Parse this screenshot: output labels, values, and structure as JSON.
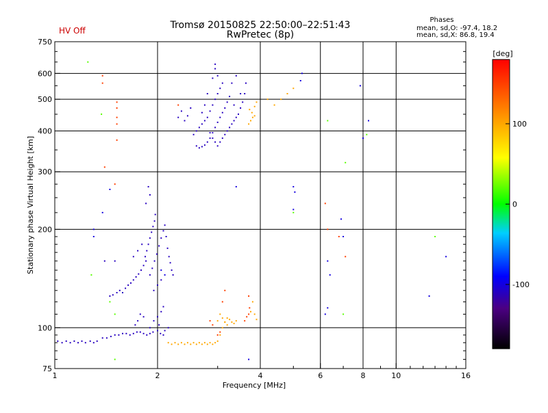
{
  "chart_data": {
    "type": "scatter",
    "title": "Tromsø 20150825 22:50:00–22:51:43",
    "subtitle": "RwPretec (8p)",
    "status_text": "HV Off",
    "phase_info": {
      "heading": "Phases",
      "line1": "mean, sd,O: -97.4, 18.2",
      "line2": "mean, sd,X:  86.8, 19.4"
    },
    "xlabel": "Frequency [MHz]",
    "ylabel": "Stationary phase Virtual Height [km]",
    "x_scale": "log",
    "y_scale": "log",
    "xlim": [
      1,
      16
    ],
    "ylim": [
      75,
      750
    ],
    "x_ticks": [
      1,
      2,
      4,
      6,
      8,
      10,
      16
    ],
    "y_ticks": [
      75,
      100,
      200,
      300,
      400,
      500,
      600,
      750
    ],
    "x_grid": [
      2,
      4,
      6,
      8,
      10
    ],
    "y_grid": [
      100,
      200,
      300,
      400,
      500,
      600
    ],
    "colorbar": {
      "label": "[deg]",
      "range": [
        -180,
        180
      ],
      "ticks": [
        100,
        0,
        -100
      ]
    },
    "series": [
      {
        "name": "",
        "phase_deg": -110,
        "points": [
          [
            1.02,
            91
          ],
          [
            1.05,
            90
          ],
          [
            1.08,
            91
          ],
          [
            1.11,
            90
          ],
          [
            1.14,
            91
          ],
          [
            1.17,
            90
          ],
          [
            1.2,
            91
          ],
          [
            1.23,
            90
          ],
          [
            1.27,
            91
          ],
          [
            1.3,
            90
          ],
          [
            1.33,
            91
          ],
          [
            1.38,
            93
          ],
          [
            1.42,
            93
          ],
          [
            1.46,
            94
          ],
          [
            1.5,
            95
          ],
          [
            1.54,
            95
          ],
          [
            1.58,
            96
          ],
          [
            1.62,
            96
          ],
          [
            1.66,
            95
          ],
          [
            1.7,
            96
          ],
          [
            1.74,
            97
          ],
          [
            1.78,
            97
          ],
          [
            1.82,
            96
          ],
          [
            1.86,
            95
          ],
          [
            1.9,
            96
          ],
          [
            1.94,
            97
          ],
          [
            2.0,
            98
          ],
          [
            2.04,
            96
          ],
          [
            2.08,
            95
          ],
          [
            1.45,
            125
          ],
          [
            1.48,
            126
          ],
          [
            1.52,
            128
          ],
          [
            1.55,
            130
          ],
          [
            1.58,
            128
          ],
          [
            1.61,
            132
          ],
          [
            1.64,
            135
          ],
          [
            1.67,
            137
          ],
          [
            1.7,
            140
          ],
          [
            1.73,
            143
          ],
          [
            1.76,
            146
          ],
          [
            1.79,
            150
          ],
          [
            1.82,
            155
          ],
          [
            1.85,
            160
          ],
          [
            1.84,
            165
          ],
          [
            1.86,
            172
          ],
          [
            1.88,
            180
          ],
          [
            1.9,
            188
          ],
          [
            1.92,
            196
          ],
          [
            1.94,
            204
          ],
          [
            1.96,
            212
          ],
          [
            1.97,
            222
          ],
          [
            1.85,
            240
          ],
          [
            1.9,
            255
          ],
          [
            1.88,
            270
          ],
          [
            1.9,
            145
          ],
          [
            1.93,
            152
          ],
          [
            1.96,
            160
          ],
          [
            1.99,
            168
          ],
          [
            2.02,
            178
          ],
          [
            2.05,
            188
          ],
          [
            2.08,
            198
          ],
          [
            2.1,
            206
          ],
          [
            2.12,
            190
          ],
          [
            2.14,
            175
          ],
          [
            2.16,
            165
          ],
          [
            2.18,
            158
          ],
          [
            2.2,
            150
          ],
          [
            2.22,
            145
          ],
          [
            2.05,
            140
          ],
          [
            2.0,
            135
          ],
          [
            1.95,
            130
          ],
          [
            1.7,
            165
          ],
          [
            1.75,
            172
          ],
          [
            1.8,
            180
          ],
          [
            1.5,
            160
          ],
          [
            1.4,
            160
          ],
          [
            1.95,
            105
          ],
          [
            2.0,
            108
          ],
          [
            2.05,
            112
          ],
          [
            2.08,
            116
          ],
          [
            1.78,
            110
          ],
          [
            1.82,
            108
          ],
          [
            1.75,
            105
          ],
          [
            1.72,
            102
          ],
          [
            1.9,
            100
          ],
          [
            2.02,
            102
          ],
          [
            2.1,
            98
          ],
          [
            2.15,
            100
          ],
          [
            2.85,
            395
          ],
          [
            2.9,
            380
          ],
          [
            2.95,
            370
          ],
          [
            3.0,
            360
          ],
          [
            3.05,
            370
          ],
          [
            3.1,
            380
          ],
          [
            3.15,
            390
          ],
          [
            3.2,
            400
          ],
          [
            3.25,
            410
          ],
          [
            3.3,
            420
          ],
          [
            3.35,
            430
          ],
          [
            3.4,
            440
          ],
          [
            3.45,
            450
          ],
          [
            3.5,
            470
          ],
          [
            3.55,
            490
          ],
          [
            3.6,
            520
          ],
          [
            3.63,
            560
          ],
          [
            2.6,
            360
          ],
          [
            2.65,
            355
          ],
          [
            2.7,
            358
          ],
          [
            2.75,
            362
          ],
          [
            2.8,
            370
          ],
          [
            2.85,
            380
          ],
          [
            2.9,
            395
          ],
          [
            2.95,
            410
          ],
          [
            3.0,
            425
          ],
          [
            3.05,
            440
          ],
          [
            3.1,
            455
          ],
          [
            3.15,
            470
          ],
          [
            3.2,
            490
          ],
          [
            3.25,
            510
          ],
          [
            2.55,
            390
          ],
          [
            2.6,
            400
          ],
          [
            2.65,
            410
          ],
          [
            2.7,
            420
          ],
          [
            2.75,
            430
          ],
          [
            2.8,
            440
          ],
          [
            2.85,
            460
          ],
          [
            2.9,
            480
          ],
          [
            2.95,
            500
          ],
          [
            3.0,
            520
          ],
          [
            3.05,
            540
          ],
          [
            3.1,
            560
          ],
          [
            3.0,
            590
          ],
          [
            2.95,
            640
          ],
          [
            2.95,
            620
          ],
          [
            2.9,
            580
          ],
          [
            2.8,
            520
          ],
          [
            2.75,
            480
          ],
          [
            2.7,
            455
          ],
          [
            2.45,
            445
          ],
          [
            2.4,
            430
          ],
          [
            2.3,
            440
          ],
          [
            2.35,
            460
          ],
          [
            2.5,
            470
          ],
          [
            3.4,
            590
          ],
          [
            3.3,
            560
          ],
          [
            3.5,
            520
          ],
          [
            3.35,
            480
          ]
        ]
      },
      {
        "name": "",
        "phase_deg": 100,
        "points": [
          [
            2.15,
            90
          ],
          [
            2.2,
            89
          ],
          [
            2.25,
            90
          ],
          [
            2.3,
            89
          ],
          [
            2.35,
            90
          ],
          [
            2.4,
            89
          ],
          [
            2.45,
            90
          ],
          [
            2.5,
            89
          ],
          [
            2.55,
            90
          ],
          [
            2.6,
            89
          ],
          [
            2.65,
            90
          ],
          [
            2.7,
            89
          ],
          [
            2.75,
            90
          ],
          [
            2.8,
            89
          ],
          [
            2.85,
            90
          ],
          [
            2.9,
            89
          ],
          [
            2.95,
            90
          ],
          [
            3.0,
            91
          ],
          [
            3.05,
            95
          ],
          [
            3.1,
            100
          ],
          [
            3.15,
            104
          ],
          [
            3.2,
            107
          ],
          [
            3.25,
            106
          ],
          [
            3.3,
            104
          ],
          [
            3.35,
            103
          ],
          [
            3.4,
            105
          ],
          [
            3.7,
            420
          ],
          [
            3.75,
            430
          ],
          [
            3.8,
            440
          ],
          [
            3.85,
            445
          ],
          [
            3.78,
            455
          ],
          [
            3.72,
            465
          ],
          [
            3.85,
            475
          ],
          [
            3.9,
            490
          ],
          [
            4.2,
            500
          ],
          [
            4.4,
            480
          ],
          [
            4.6,
            500
          ],
          [
            4.8,
            520
          ],
          [
            5.0,
            540
          ],
          [
            3.0,
            105
          ],
          [
            3.05,
            110
          ],
          [
            3.1,
            107
          ],
          [
            3.15,
            104
          ],
          [
            3.2,
            102
          ],
          [
            3.8,
            120
          ],
          [
            3.75,
            112
          ],
          [
            3.85,
            110
          ],
          [
            3.9,
            106
          ]
        ]
      },
      {
        "name": "",
        "phase_deg": 150,
        "points": [
          [
            3.6,
            105
          ],
          [
            3.65,
            108
          ],
          [
            3.7,
            110
          ],
          [
            3.72,
            115
          ],
          [
            3.7,
            125
          ],
          [
            3.0,
            95
          ],
          [
            3.05,
            97
          ],
          [
            2.9,
            102
          ],
          [
            2.85,
            105
          ],
          [
            3.1,
            120
          ],
          [
            3.15,
            130
          ],
          [
            1.38,
            590
          ],
          [
            1.38,
            560
          ],
          [
            1.52,
            490
          ],
          [
            1.52,
            470
          ],
          [
            1.52,
            440
          ],
          [
            1.52,
            420
          ],
          [
            1.52,
            375
          ],
          [
            1.4,
            310
          ],
          [
            1.5,
            275
          ],
          [
            2.3,
            480
          ],
          [
            6.2,
            240
          ],
          [
            6.3,
            200
          ],
          [
            6.8,
            190
          ],
          [
            7.1,
            165
          ]
        ]
      },
      {
        "name": "",
        "phase_deg": -100,
        "points": [
          [
            1.3,
            200
          ],
          [
            1.3,
            190
          ],
          [
            1.38,
            225
          ],
          [
            1.45,
            265
          ],
          [
            2.05,
            150
          ],
          [
            2.1,
            145
          ],
          [
            5.3,
            600
          ],
          [
            5.25,
            570
          ],
          [
            5.0,
            270
          ],
          [
            5.05,
            260
          ],
          [
            5.0,
            230
          ],
          [
            6.9,
            215
          ],
          [
            7.0,
            190
          ],
          [
            6.3,
            160
          ],
          [
            6.4,
            145
          ],
          [
            6.2,
            110
          ],
          [
            6.3,
            115
          ],
          [
            7.85,
            550
          ],
          [
            8.0,
            380
          ],
          [
            8.3,
            430
          ],
          [
            12.5,
            125
          ],
          [
            14.0,
            165
          ],
          [
            3.7,
            80
          ],
          [
            3.4,
            270
          ]
        ]
      },
      {
        "name": "",
        "phase_deg": 20,
        "points": [
          [
            1.25,
            650
          ],
          [
            1.37,
            450
          ],
          [
            1.28,
            145
          ],
          [
            1.45,
            120
          ],
          [
            1.5,
            110
          ],
          [
            7.1,
            320
          ],
          [
            6.3,
            430
          ],
          [
            8.2,
            390
          ],
          [
            5.0,
            225
          ],
          [
            13.0,
            190
          ],
          [
            1.5,
            80
          ],
          [
            7.0,
            110
          ]
        ]
      }
    ]
  }
}
